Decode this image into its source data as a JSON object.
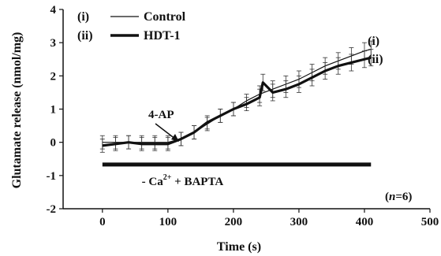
{
  "chart_data": {
    "type": "line",
    "xlabel": "Time (s)",
    "ylabel": "Glutamate release (nmol/mg)",
    "xlim": [
      -60,
      500
    ],
    "ylim": [
      -2,
      4
    ],
    "xticks": [
      "0",
      "100",
      "200",
      "300",
      "400",
      "500"
    ],
    "yticks": [
      "-2",
      "-1",
      "0",
      "1",
      "2",
      "3",
      "4"
    ],
    "legend": {
      "position": "top-left",
      "entries": [
        {
          "marker": "(i)",
          "label": "Control"
        },
        {
          "marker": "(ii)",
          "label": "HDT-1"
        }
      ]
    },
    "series": [
      {
        "name": "Control",
        "marker": "(i)",
        "color": "#111111",
        "x": [
          0,
          20,
          40,
          60,
          80,
          100,
          120,
          140,
          160,
          180,
          200,
          220,
          240,
          260,
          280,
          300,
          320,
          340,
          360,
          380,
          400,
          410
        ],
        "y": [
          0.0,
          0.0,
          0.0,
          0.0,
          0.0,
          0.0,
          0.1,
          0.3,
          0.55,
          0.8,
          1.0,
          1.25,
          1.45,
          1.6,
          1.75,
          1.9,
          2.1,
          2.3,
          2.45,
          2.6,
          2.75,
          2.8
        ],
        "error": [
          0.2,
          0.2,
          0.2,
          0.2,
          0.2,
          0.2,
          0.2,
          0.2,
          0.2,
          0.2,
          0.2,
          0.2,
          0.25,
          0.25,
          0.25,
          0.25,
          0.25,
          0.25,
          0.25,
          0.25,
          0.25,
          0.25
        ]
      },
      {
        "name": "HDT-1",
        "marker": "(ii)",
        "color": "#111111",
        "x": [
          0,
          20,
          40,
          60,
          80,
          100,
          120,
          140,
          160,
          180,
          200,
          220,
          240,
          245,
          260,
          280,
          300,
          320,
          340,
          360,
          380,
          400,
          410
        ],
        "y": [
          -0.1,
          -0.05,
          0.0,
          -0.05,
          -0.05,
          -0.05,
          0.1,
          0.3,
          0.6,
          0.8,
          1.0,
          1.15,
          1.35,
          1.8,
          1.5,
          1.6,
          1.75,
          1.95,
          2.15,
          2.3,
          2.4,
          2.5,
          2.55
        ],
        "error": [
          0.2,
          0.2,
          0.2,
          0.2,
          0.2,
          0.2,
          0.2,
          0.2,
          0.2,
          0.2,
          0.2,
          0.2,
          0.25,
          0.25,
          0.25,
          0.25,
          0.25,
          0.25,
          0.25,
          0.25,
          0.25,
          0.25,
          0.25
        ]
      }
    ],
    "baseline_bar": {
      "x": [
        0,
        410
      ],
      "y": -0.67,
      "label": "- Ca + BAPTA"
    },
    "annotations": {
      "stimulus": {
        "text": "4-AP",
        "x": 105
      },
      "n": "(n=6)",
      "end_label_i": "(i)",
      "end_label_ii": "(ii)"
    },
    "grid": false
  }
}
